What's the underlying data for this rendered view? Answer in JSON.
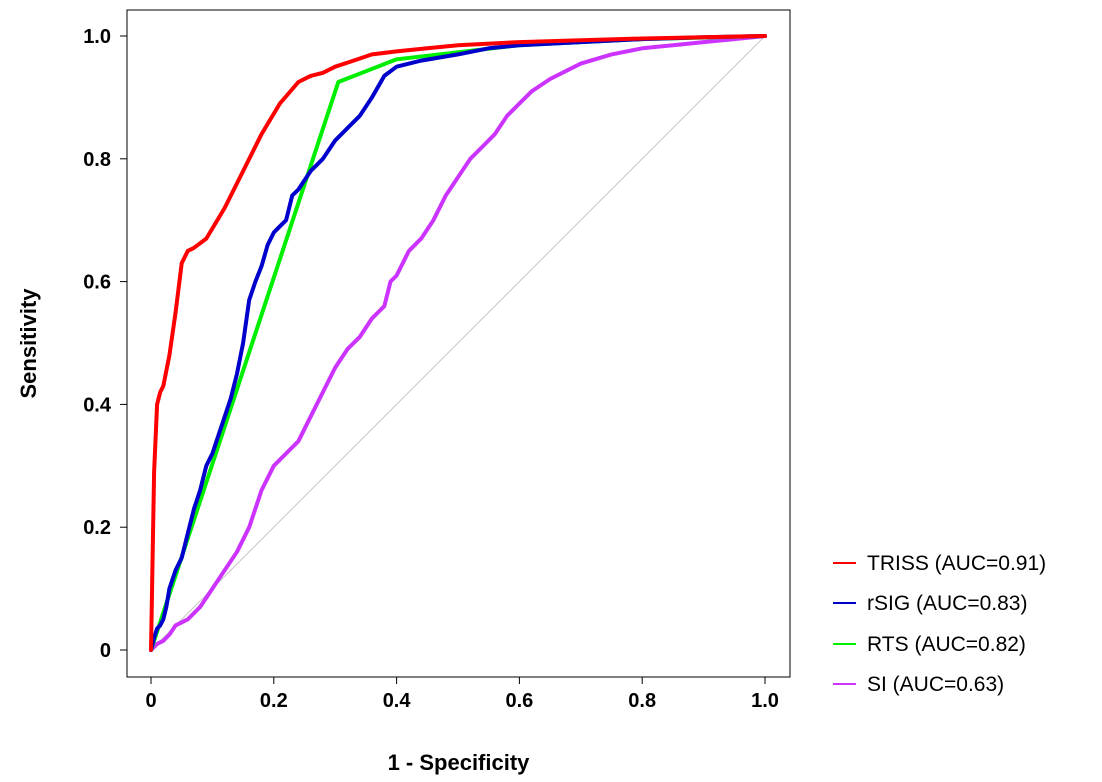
{
  "chart_data": {
    "type": "line",
    "title": "",
    "xlabel": "1 - Specificity",
    "ylabel": "Sensitivity",
    "xlim": [
      0,
      1
    ],
    "ylim": [
      0,
      1
    ],
    "x_ticks": [
      {
        "value": 0,
        "label": "0"
      },
      {
        "value": 0.2,
        "label": "0.2"
      },
      {
        "value": 0.4,
        "label": "0.4"
      },
      {
        "value": 0.6,
        "label": "0.6"
      },
      {
        "value": 0.8,
        "label": "0.8"
      },
      {
        "value": 1.0,
        "label": "1.0"
      }
    ],
    "y_ticks": [
      {
        "value": 0,
        "label": "0"
      },
      {
        "value": 0.2,
        "label": "0.2"
      },
      {
        "value": 0.4,
        "label": "0.4"
      },
      {
        "value": 0.6,
        "label": "0.6"
      },
      {
        "value": 0.8,
        "label": "0.8"
      },
      {
        "value": 1.0,
        "label": "1.0"
      }
    ],
    "grid": false,
    "legend_position": "bottom-right, outside plot",
    "reference_line": {
      "x": [
        0,
        1
      ],
      "y": [
        0,
        1
      ],
      "color": "#c8c8c8"
    },
    "series": [
      {
        "name": "TRISS (AUC=0.91)",
        "color": "#ff0000",
        "x": [
          0,
          0.005,
          0.01,
          0.015,
          0.02,
          0.03,
          0.04,
          0.05,
          0.06,
          0.07,
          0.09,
          0.12,
          0.15,
          0.18,
          0.21,
          0.24,
          0.26,
          0.28,
          0.3,
          0.33,
          0.36,
          0.4,
          0.45,
          0.5,
          0.6,
          0.7,
          0.8,
          0.9,
          1.0
        ],
        "y": [
          0,
          0.29,
          0.4,
          0.42,
          0.43,
          0.48,
          0.55,
          0.63,
          0.65,
          0.655,
          0.67,
          0.72,
          0.78,
          0.84,
          0.89,
          0.925,
          0.935,
          0.94,
          0.95,
          0.96,
          0.97,
          0.975,
          0.98,
          0.985,
          0.99,
          0.993,
          0.996,
          0.998,
          1.0
        ]
      },
      {
        "name": "rSIG (AUC=0.83)",
        "color": "#0000cc",
        "x": [
          0,
          0.005,
          0.01,
          0.015,
          0.02,
          0.025,
          0.03,
          0.04,
          0.05,
          0.06,
          0.07,
          0.08,
          0.09,
          0.1,
          0.11,
          0.12,
          0.13,
          0.14,
          0.15,
          0.16,
          0.17,
          0.18,
          0.19,
          0.2,
          0.21,
          0.22,
          0.23,
          0.24,
          0.26,
          0.28,
          0.3,
          0.32,
          0.34,
          0.36,
          0.38,
          0.4,
          0.44,
          0.5,
          0.55,
          0.6,
          0.7,
          0.8,
          0.9,
          1.0
        ],
        "y": [
          0,
          0.02,
          0.035,
          0.04,
          0.05,
          0.07,
          0.1,
          0.13,
          0.15,
          0.19,
          0.23,
          0.26,
          0.3,
          0.32,
          0.35,
          0.38,
          0.41,
          0.45,
          0.5,
          0.57,
          0.6,
          0.625,
          0.66,
          0.68,
          0.69,
          0.7,
          0.74,
          0.75,
          0.78,
          0.8,
          0.83,
          0.85,
          0.87,
          0.9,
          0.935,
          0.95,
          0.96,
          0.97,
          0.98,
          0.985,
          0.99,
          0.995,
          0.998,
          1.0
        ]
      },
      {
        "name": "RTS (AUC=0.82)",
        "color": "#00ee00",
        "x": [
          0,
          0.01,
          0.305,
          0.4,
          0.6,
          0.8,
          1.0
        ],
        "y": [
          0,
          0.03,
          0.925,
          0.962,
          0.985,
          0.995,
          1.0
        ]
      },
      {
        "name": "SI (AUC=0.63)",
        "color": "#cc33ff",
        "x": [
          0,
          0.01,
          0.02,
          0.03,
          0.04,
          0.06,
          0.08,
          0.1,
          0.12,
          0.14,
          0.16,
          0.18,
          0.2,
          0.22,
          0.24,
          0.26,
          0.28,
          0.3,
          0.32,
          0.34,
          0.36,
          0.38,
          0.39,
          0.4,
          0.42,
          0.44,
          0.46,
          0.48,
          0.5,
          0.52,
          0.54,
          0.56,
          0.58,
          0.6,
          0.62,
          0.65,
          0.7,
          0.75,
          0.8,
          0.85,
          0.9,
          0.95,
          1.0
        ],
        "y": [
          0,
          0.01,
          0.015,
          0.025,
          0.04,
          0.05,
          0.07,
          0.1,
          0.13,
          0.16,
          0.2,
          0.26,
          0.3,
          0.32,
          0.34,
          0.38,
          0.42,
          0.46,
          0.49,
          0.51,
          0.54,
          0.56,
          0.6,
          0.61,
          0.65,
          0.67,
          0.7,
          0.74,
          0.77,
          0.8,
          0.82,
          0.84,
          0.87,
          0.89,
          0.91,
          0.93,
          0.955,
          0.97,
          0.98,
          0.985,
          0.99,
          0.995,
          1.0
        ]
      }
    ]
  }
}
